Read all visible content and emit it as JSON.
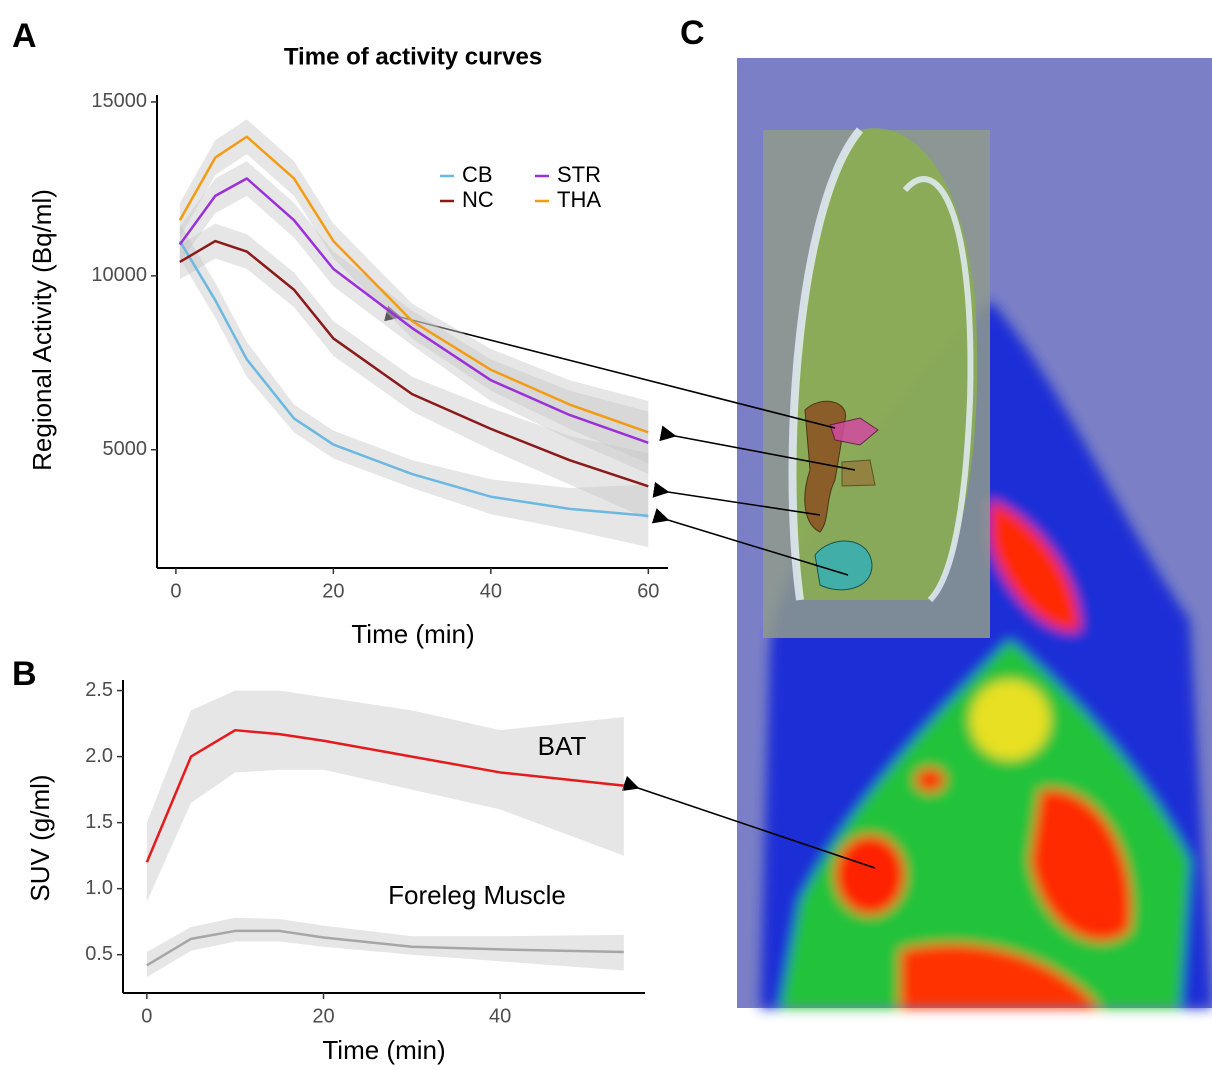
{
  "panels": [
    "A",
    "B",
    "C"
  ],
  "chart_data": [
    {
      "type": "line",
      "title": "Time of activity curves",
      "x_label": "Time (min)",
      "y_label": "Regional Activity (Bq/ml)",
      "x": [
        0.5,
        5,
        9,
        15,
        20,
        30,
        40,
        50,
        60
      ],
      "series": [
        {
          "name": "CB",
          "color": "#6bb8e0",
          "values": [
            11000,
            9300,
            7600,
            5900,
            5150,
            4300,
            3650,
            3300,
            3100
          ],
          "lower": [
            10500,
            8800,
            7100,
            5500,
            4750,
            3900,
            3150,
            2700,
            2200
          ],
          "upper": [
            11500,
            9800,
            8100,
            6300,
            5550,
            4700,
            4150,
            3900,
            4000
          ]
        },
        {
          "name": "NC",
          "color": "#8b1a1a",
          "values": [
            10400,
            11000,
            10700,
            9600,
            8200,
            6600,
            5600,
            4700,
            3950
          ],
          "lower": [
            9900,
            10500,
            10200,
            9100,
            7700,
            6100,
            5000,
            4000,
            3000
          ],
          "upper": [
            10900,
            11500,
            11200,
            10100,
            8700,
            7100,
            6200,
            5400,
            4900
          ]
        },
        {
          "name": "STR",
          "color": "#9b30d9",
          "values": [
            10900,
            12300,
            12800,
            11600,
            10200,
            8500,
            7000,
            6000,
            5200
          ],
          "lower": [
            10400,
            11800,
            12300,
            11100,
            9700,
            8000,
            6400,
            5300,
            4300
          ],
          "upper": [
            11400,
            12800,
            13300,
            12100,
            10700,
            9000,
            7600,
            6700,
            6100
          ]
        },
        {
          "name": "THA",
          "color": "#f39c12",
          "values": [
            11600,
            13400,
            14000,
            12800,
            11000,
            8700,
            7300,
            6300,
            5500
          ],
          "lower": [
            11100,
            12900,
            13500,
            12300,
            10500,
            8200,
            6700,
            5600,
            4600
          ],
          "upper": [
            12100,
            13900,
            14500,
            13300,
            11500,
            9200,
            7900,
            7000,
            6400
          ]
        }
      ],
      "xlim": [
        -2.4,
        62.5
      ],
      "xticks": [
        0,
        20,
        40,
        60
      ],
      "ylim": [
        1600,
        15200
      ],
      "yticks": [
        5000,
        10000,
        15000
      ],
      "legend": "top-right"
    },
    {
      "type": "line",
      "x_label": "Time (min)",
      "y_label": "SUV (g/ml)",
      "x": [
        0,
        5,
        10,
        15,
        20,
        30,
        40,
        54
      ],
      "series": [
        {
          "name": "BAT",
          "color": "#e41a1c",
          "values": [
            1.2,
            2.0,
            2.2,
            2.17,
            2.12,
            2.0,
            1.88,
            1.78
          ],
          "lower": [
            0.9,
            1.65,
            1.88,
            1.9,
            1.9,
            1.75,
            1.6,
            1.25
          ],
          "upper": [
            1.5,
            2.35,
            2.5,
            2.5,
            2.45,
            2.35,
            2.2,
            2.3
          ]
        },
        {
          "name": "Foreleg Muscle",
          "color": "#a6a6a6",
          "values": [
            0.42,
            0.62,
            0.68,
            0.68,
            0.63,
            0.56,
            0.54,
            0.52
          ],
          "lower": [
            0.33,
            0.53,
            0.6,
            0.6,
            0.56,
            0.5,
            0.45,
            0.38
          ],
          "upper": [
            0.52,
            0.71,
            0.78,
            0.77,
            0.72,
            0.64,
            0.64,
            0.65
          ]
        }
      ],
      "xlim": [
        -2.7,
        56.4
      ],
      "xticks": [
        0,
        20,
        40
      ],
      "ylim": [
        0.21,
        2.58
      ],
      "yticks": [
        {
          "value": 0.5,
          "label": "0.5"
        },
        {
          "value": 1,
          "label": "1.0"
        },
        1.5,
        {
          "value": 2,
          "label": "2.0"
        },
        2.5
      ]
    }
  ]
}
